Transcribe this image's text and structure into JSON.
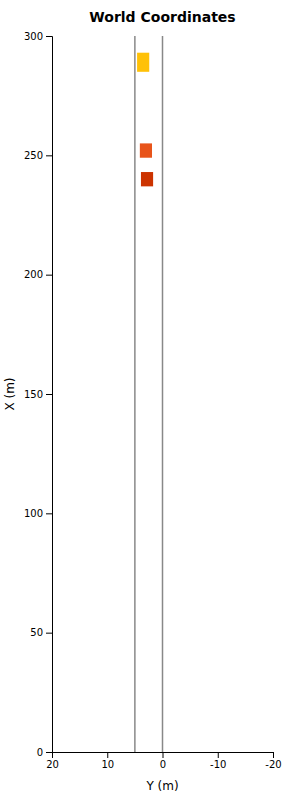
{
  "chart_data": {
    "type": "rect",
    "title": "World Coordinates",
    "xlabel": "Y (m)",
    "ylabel": "X (m)",
    "xlim": [
      20,
      -20
    ],
    "ylim": [
      0,
      300
    ],
    "xticks": [
      20,
      10,
      0,
      -10,
      -20
    ],
    "yticks": [
      0,
      50,
      100,
      150,
      200,
      250,
      300
    ],
    "series": [
      {
        "type": "vline",
        "color": "#888888",
        "x": [
          5,
          0
        ]
      },
      {
        "type": "rect",
        "colors": [
          "#FFC107",
          "#E8541A",
          "#CC3300"
        ],
        "x": [
          3.5,
          3.0,
          2.8
        ],
        "values": [
          289,
          252,
          240
        ],
        "widths": [
          2.2,
          2.2,
          2.2
        ],
        "heights": [
          8,
          6,
          6
        ]
      }
    ]
  }
}
